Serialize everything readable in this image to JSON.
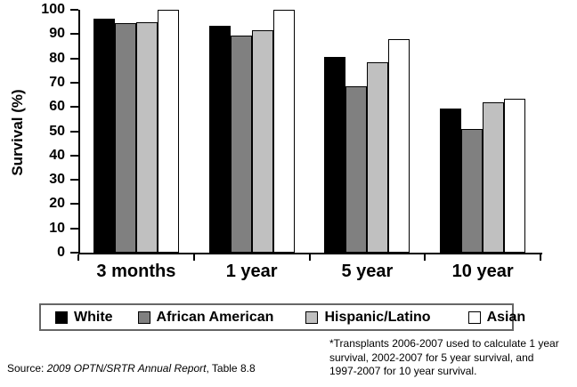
{
  "figure": {
    "y_axis_title": "Survival (%)",
    "source": {
      "prefix": "Source: ",
      "italic": "2009 OPTN/SRTR Annual Report",
      "suffix": ", Table 8.8"
    },
    "footnote": "*Transplants 2006-2007 used to calculate 1 year\nsurvival, 2002-2007 for 5 year survival, and\n1997-2007 for 10 year survival."
  },
  "chart_data": {
    "type": "bar",
    "title": "",
    "xlabel": "",
    "ylabel": "Survival (%)",
    "ylim": [
      0,
      100
    ],
    "y_ticks": [
      0,
      10,
      20,
      30,
      40,
      50,
      60,
      70,
      80,
      90,
      100
    ],
    "grid": false,
    "legend_position": "bottom",
    "categories": [
      "3 months",
      "1 year",
      "5 year",
      "10 year"
    ],
    "series": [
      {
        "name": "White",
        "color": "#000000",
        "values": [
          96.5,
          93.5,
          80.5,
          59.5
        ]
      },
      {
        "name": "African American",
        "color": "#808080",
        "values": [
          94.5,
          89.5,
          68.5,
          51.0
        ]
      },
      {
        "name": "Hispanic/Latino",
        "color": "#c0c0c0",
        "values": [
          95.0,
          91.5,
          78.5,
          62.0
        ]
      },
      {
        "name": "Asian",
        "color": "#ffffff",
        "values": [
          100.0,
          100.0,
          88.0,
          63.5
        ]
      }
    ]
  }
}
